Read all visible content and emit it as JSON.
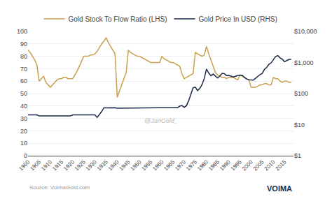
{
  "chart_data": {
    "type": "line",
    "x": [
      1900,
      1901,
      1902,
      1903,
      1904,
      1905,
      1906,
      1907,
      1908,
      1909,
      1910,
      1911,
      1912,
      1913,
      1914,
      1915,
      1916,
      1917,
      1918,
      1919,
      1920,
      1921,
      1922,
      1923,
      1924,
      1925,
      1926,
      1927,
      1928,
      1929,
      1930,
      1931,
      1932,
      1933,
      1934,
      1935,
      1936,
      1937,
      1938,
      1939,
      1940,
      1941,
      1942,
      1943,
      1944,
      1945,
      1946,
      1947,
      1948,
      1949,
      1950,
      1951,
      1952,
      1953,
      1954,
      1955,
      1956,
      1957,
      1958,
      1959,
      1960,
      1961,
      1962,
      1963,
      1964,
      1965,
      1966,
      1967,
      1968,
      1969,
      1970,
      1971,
      1972,
      1973,
      1974,
      1975,
      1976,
      1977,
      1978,
      1979,
      1980,
      1981,
      1982,
      1983,
      1984,
      1985,
      1986,
      1987,
      1988,
      1989,
      1990,
      1991,
      1992,
      1993,
      1994,
      1995,
      1996,
      1997,
      1998,
      1999,
      2000,
      2001,
      2002,
      2003,
      2004,
      2005,
      2006,
      2007,
      2008,
      2009,
      2010,
      2011,
      2012,
      2013,
      2014,
      2015,
      2016,
      2017,
      2018
    ],
    "series": [
      {
        "name": "Gold Stock To Flow Ratio (LHS)",
        "color": "#c8a050",
        "values": [
          85,
          83,
          80,
          77,
          73,
          60,
          62,
          64,
          59,
          57,
          55,
          57,
          59,
          61,
          62,
          62,
          63,
          63,
          62,
          62,
          62,
          65,
          68,
          72,
          76,
          80,
          80,
          80,
          81,
          81,
          82,
          84,
          87,
          90,
          92,
          95,
          91,
          88,
          85,
          82,
          47,
          52,
          57,
          62,
          67,
          85,
          83,
          82,
          81,
          80,
          80,
          79,
          78,
          77,
          76,
          75,
          75,
          75,
          75,
          75,
          80,
          78,
          77,
          76,
          75,
          75,
          74,
          73,
          72,
          66,
          62,
          63,
          64,
          65,
          66,
          83,
          82,
          81,
          80,
          81,
          88,
          82,
          77,
          72,
          67,
          65,
          64,
          63,
          63,
          62,
          63,
          63,
          63,
          62,
          61,
          65,
          64,
          63,
          62,
          61,
          55,
          55,
          55,
          56,
          57,
          57,
          58,
          58,
          57,
          57,
          63,
          62,
          62,
          60,
          59,
          60,
          60,
          59,
          59
        ]
      },
      {
        "name": "Gold Price In USD (RHS)",
        "color": "#1a2a4a",
        "axis": "y2",
        "values": [
          20.67,
          20.67,
          20.67,
          20.67,
          20.67,
          18.99,
          18.99,
          18.99,
          18.99,
          18.99,
          18.92,
          18.92,
          18.92,
          18.92,
          18.92,
          18.99,
          18.99,
          18.99,
          18.99,
          18.99,
          20.68,
          20.68,
          20.68,
          20.63,
          20.63,
          20.63,
          20.63,
          20.63,
          20.63,
          20.63,
          20.63,
          17.06,
          20.69,
          26.33,
          34.69,
          34.84,
          34.87,
          34.87,
          34.87,
          34.87,
          33.85,
          33.85,
          33.85,
          33.85,
          33.85,
          34.71,
          34.71,
          34.72,
          34.72,
          34.72,
          34.72,
          34.72,
          34.72,
          34.72,
          34.72,
          34.99,
          34.99,
          34.99,
          35.1,
          35.1,
          35.27,
          35.27,
          35.23,
          35.09,
          35.1,
          35.12,
          35.13,
          34.95,
          39.31,
          41.28,
          36.02,
          40.62,
          58.42,
          97.39,
          154.0,
          160.86,
          124.74,
          147.71,
          193.4,
          306.0,
          615.0,
          460.0,
          376.0,
          424.0,
          360.0,
          317.0,
          368.0,
          447.0,
          437.0,
          381.0,
          383.0,
          362.0,
          343.0,
          360.0,
          384.0,
          384.0,
          388.0,
          331.0,
          294.0,
          279.0,
          279.0,
          271.0,
          310.0,
          363.0,
          409.0,
          444.0,
          603.0,
          695.0,
          872.0,
          972.0,
          1224.0,
          1572.0,
          1668.0,
          1411.0,
          1266.0,
          1060.0,
          1151.0,
          1257.0,
          1269.0
        ]
      }
    ],
    "xlim": [
      1900,
      2019
    ],
    "xticks": [
      1900,
      1905,
      1910,
      1915,
      1920,
      1925,
      1930,
      1935,
      1940,
      1945,
      1950,
      1955,
      1960,
      1965,
      1970,
      1975,
      1980,
      1985,
      1990,
      1995,
      2000,
      2005,
      2010,
      2015
    ],
    "ylim": [
      0,
      100
    ],
    "yticks": [
      0,
      10,
      20,
      30,
      40,
      50,
      60,
      70,
      80,
      90,
      100
    ],
    "y2lim": [
      1,
      10000
    ],
    "y2ticks": [
      {
        "value": 1,
        "label": "$1"
      },
      {
        "value": 10,
        "label": "$10"
      },
      {
        "value": 100,
        "label": "$100"
      },
      {
        "value": 1000,
        "label": "$1,000"
      },
      {
        "value": 10000,
        "label": "$10,000"
      }
    ],
    "log": "y2",
    "grid": true,
    "legend": "top",
    "annotations": [
      "Source: VoimaGold.com",
      "@JanGold_",
      "VOIMA"
    ]
  }
}
